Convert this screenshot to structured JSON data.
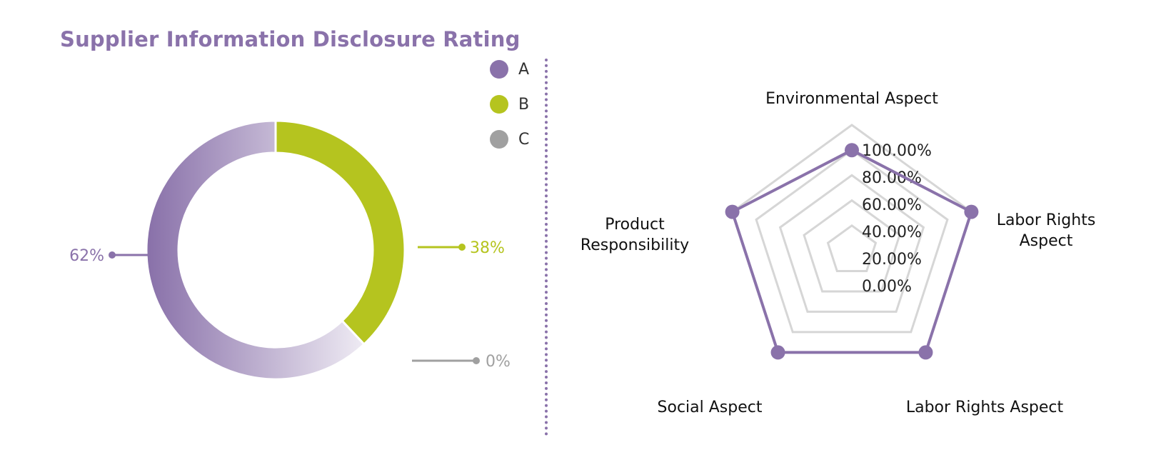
{
  "chart_data": [
    {
      "type": "pie",
      "variant": "donut",
      "title": "Supplier Information Disclosure Rating",
      "legend_position": "top-right",
      "slices": [
        {
          "label": "A",
          "value": 62,
          "display": "62%",
          "color": "#8a72aa"
        },
        {
          "label": "B",
          "value": 38,
          "display": "38%",
          "color": "#b5c41f"
        },
        {
          "label": "C",
          "value": 0,
          "display": "0%",
          "color": "#a0a0a0"
        }
      ]
    },
    {
      "type": "radar",
      "axes": [
        "Environmental Aspect",
        "Labor Rights Aspect",
        "Labor Rights Aspect",
        "Social Aspect",
        "Product Responsibility"
      ],
      "axis_label_lines": [
        [
          "Environmental Aspect"
        ],
        [
          "Labor Rights",
          "Aspect"
        ],
        [
          "Labor Rights Aspect"
        ],
        [
          "Social Aspect"
        ],
        [
          "Product",
          "Responsibility"
        ]
      ],
      "scale_ticks": [
        "0.00%",
        "20.00%",
        "40.00%",
        "60.00%",
        "80.00%",
        "100.00%"
      ],
      "scale_range": [
        0,
        100
      ],
      "grid": true,
      "series": [
        {
          "values": [
            80,
            100,
            100,
            100,
            100
          ],
          "color": "#8a72aa"
        }
      ]
    }
  ]
}
